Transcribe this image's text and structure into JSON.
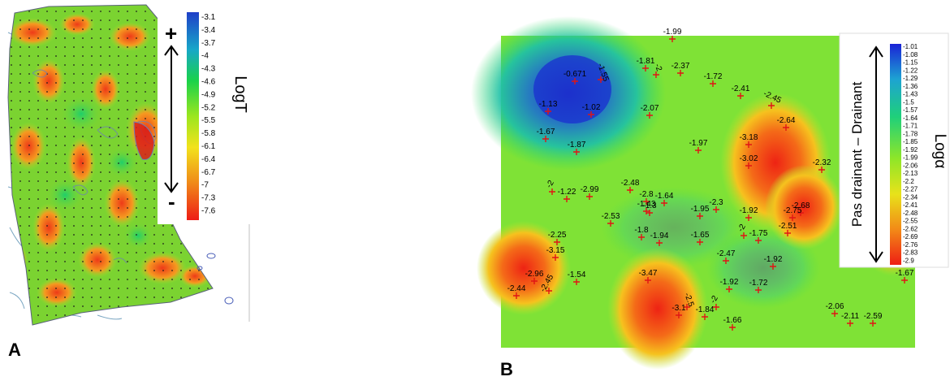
{
  "panel_a": {
    "letter": "A",
    "legend": {
      "title": "LogT",
      "plus": "+",
      "minus": "-",
      "ticks": [
        "-3.1",
        "-3.4",
        "-3.7",
        "-4",
        "-4.3",
        "-4.6",
        "-4.9",
        "-5.2",
        "-5.5",
        "-5.8",
        "-6.1",
        "-6.4",
        "-6.7",
        "-7",
        "-7.3",
        "-7.6"
      ]
    }
  },
  "panel_b": {
    "letter": "B",
    "legend": {
      "title": "Logα",
      "scale_label": "Pas drainant – Drainant",
      "ticks": [
        "-1.01",
        "-1.08",
        "-1.15",
        "-1.22",
        "-1.29",
        "-1.36",
        "-1.43",
        "-1.5",
        "-1.57",
        "-1.64",
        "-1.71",
        "-1.78",
        "-1.85",
        "-1.92",
        "-1.99",
        "-2.06",
        "-2.13",
        "-2.2",
        "-2.27",
        "-2.34",
        "-2.41",
        "-2.48",
        "-2.55",
        "-2.62",
        "-2.69",
        "-2.76",
        "-2.83",
        "-2.9"
      ]
    },
    "points": [
      {
        "label": "-1.99"
      },
      {
        "label": "-1.81"
      },
      {
        "label": "-2.37"
      },
      {
        "label": "-1.72"
      },
      {
        "label": "-0.671"
      },
      {
        "label": "-1.55"
      },
      {
        "label": "-2"
      },
      {
        "label": "-2.41"
      },
      {
        "label": "-2.45"
      },
      {
        "label": "-1.13"
      },
      {
        "label": "-1.02"
      },
      {
        "label": "-2.07"
      },
      {
        "label": "-2.64"
      },
      {
        "label": "-3.18"
      },
      {
        "label": "-1.97"
      },
      {
        "label": "-1.67"
      },
      {
        "label": "-1.87"
      },
      {
        "label": "-3.02"
      },
      {
        "label": "-2.32"
      },
      {
        "label": "-2.48"
      },
      {
        "label": "-1.22"
      },
      {
        "label": "-2.99"
      },
      {
        "label": "-2.8"
      },
      {
        "label": "-1.64"
      },
      {
        "label": "-2.3"
      },
      {
        "label": "-2"
      },
      {
        "label": "-1.3"
      },
      {
        "label": "-1.43"
      },
      {
        "label": "-2.68"
      },
      {
        "label": "-2.53"
      },
      {
        "label": "-1.95"
      },
      {
        "label": "-1.92"
      },
      {
        "label": "-2.75"
      },
      {
        "label": "-2.51"
      },
      {
        "label": "-1.8"
      },
      {
        "label": "-2.25"
      },
      {
        "label": "-1.94"
      },
      {
        "label": "-1.65"
      },
      {
        "label": "-2"
      },
      {
        "label": "-1.75"
      },
      {
        "label": "-2.45"
      },
      {
        "label": "-3.15"
      },
      {
        "label": "-2.47"
      },
      {
        "label": "-1.92"
      },
      {
        "label": "-2.96"
      },
      {
        "label": "-1.54"
      },
      {
        "label": "-3.47"
      },
      {
        "label": "-2.45"
      },
      {
        "label": "-2.44"
      },
      {
        "label": "-1.92"
      },
      {
        "label": "-1.72"
      },
      {
        "label": "-2.5"
      },
      {
        "label": "-3.1"
      },
      {
        "label": "-1.84"
      },
      {
        "label": "-2"
      },
      {
        "label": "-1.66"
      },
      {
        "label": "-2.06"
      },
      {
        "label": "-2.11"
      },
      {
        "label": "-2.59"
      },
      {
        "label": "-1.67"
      }
    ]
  }
}
